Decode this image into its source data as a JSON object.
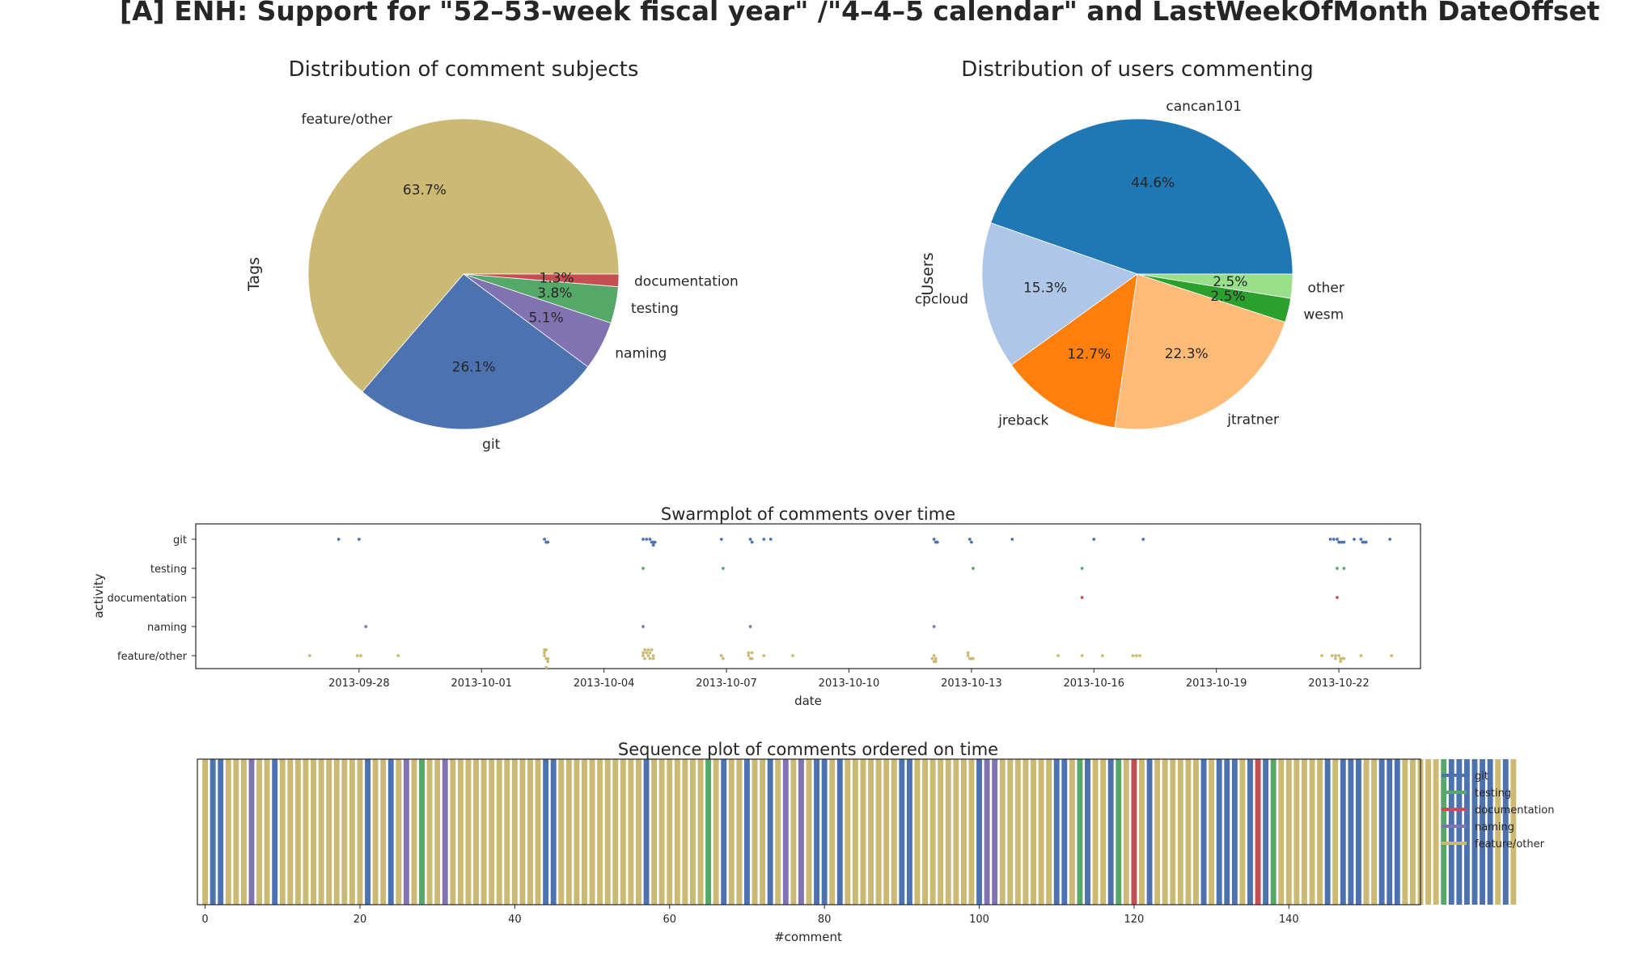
{
  "figure_title": "[A] ENH: Support for \"52–53-week fiscal year\" /\"4–4–5 calendar\" and LastWeekOfMonth DateOffset",
  "colors": {
    "git": "#4c72b0",
    "testing": "#55a868",
    "documentation": "#c44e52",
    "naming": "#8172b2",
    "feature/other": "#ccb974",
    "users": [
      "#1f77b4",
      "#aec7e8",
      "#ff7f0e",
      "#ffbb78",
      "#2ca02c",
      "#98df8a"
    ]
  },
  "chart_data": [
    {
      "type": "pie",
      "title": "Distribution of comment subjects",
      "ylabel": "Tags",
      "slices": [
        {
          "label": "feature/other",
          "pct_label": "63.7%",
          "value": 63.7,
          "color": "#ccb974"
        },
        {
          "label": "git",
          "pct_label": "26.1%",
          "value": 26.1,
          "color": "#4c72b0"
        },
        {
          "label": "naming",
          "pct_label": "5.1%",
          "value": 5.1,
          "color": "#8172b2"
        },
        {
          "label": "testing",
          "pct_label": "3.8%",
          "value": 3.8,
          "color": "#55a868"
        },
        {
          "label": "documentation",
          "pct_label": "1.3%",
          "value": 1.3,
          "color": "#c44e52"
        }
      ]
    },
    {
      "type": "pie",
      "title": "Distribution of users commenting",
      "ylabel": "Users",
      "slices": [
        {
          "label": "cancan101",
          "pct_label": "44.6%",
          "value": 44.6,
          "color": "#1f77b4"
        },
        {
          "label": "cpcloud",
          "pct_label": "15.3%",
          "value": 15.3,
          "color": "#aec7e8"
        },
        {
          "label": "jreback",
          "pct_label": "12.7%",
          "value": 12.7,
          "color": "#ff7f0e"
        },
        {
          "label": "jtratner",
          "pct_label": "22.3%",
          "value": 22.3,
          "color": "#ffbb78"
        },
        {
          "label": "wesm",
          "pct_label": "2.5%",
          "value": 2.5,
          "color": "#2ca02c"
        },
        {
          "label": "other",
          "pct_label": "2.5%",
          "value": 2.5,
          "color": "#98df8a"
        }
      ]
    },
    {
      "type": "scatter",
      "title": "Swarmplot of comments over time",
      "xlabel": "date",
      "ylabel": "activity",
      "categories": [
        "git",
        "testing",
        "documentation",
        "naming",
        "feature/other"
      ],
      "xticks": [
        "2013-09-28",
        "2013-10-01",
        "2013-10-04",
        "2013-10-07",
        "2013-10-10",
        "2013-10-13",
        "2013-10-16",
        "2013-10-19",
        "2013-10-22"
      ],
      "xlim": [
        "2013-09-24",
        "2013-10-24"
      ],
      "series": [
        {
          "name": "git",
          "x": [
            "2013-09-27 12:00",
            "2013-09-28 00:00",
            "2013-10-02 13:00",
            "2013-10-02 14:00",
            "2013-10-02 15:00",
            "2013-10-04 23:00",
            "2013-10-05 01:00",
            "2013-10-05 03:00",
            "2013-10-05 04:00",
            "2013-10-05 05:00",
            "2013-10-05 06:00",
            "2013-10-05 05:00",
            "2013-10-06 21:00",
            "2013-10-07 14:00",
            "2013-10-07 15:00",
            "2013-10-07 22:00",
            "2013-10-08 02:00",
            "2013-10-12 02:00",
            "2013-10-12 03:00",
            "2013-10-12 04:00",
            "2013-10-12 23:00",
            "2013-10-13 00:00",
            "2013-10-14 00:00",
            "2013-10-16 00:00",
            "2013-10-17 05:00",
            "2013-10-21 19:00",
            "2013-10-21 21:00",
            "2013-10-21 23:00",
            "2013-10-22 00:00",
            "2013-10-22 01:00",
            "2013-10-22 02:00",
            "2013-10-22 03:00",
            "2013-10-22 09:00",
            "2013-10-22 13:00",
            "2013-10-22 14:00",
            "2013-10-22 15:00",
            "2013-10-22 16:00",
            "2013-10-23 06:00"
          ]
        },
        {
          "name": "testing",
          "x": [
            "2013-10-04 23:00",
            "2013-10-06 22:00",
            "2013-10-13 01:00",
            "2013-10-15 17:00",
            "2013-10-21 23:00",
            "2013-10-22 03:00"
          ]
        },
        {
          "name": "documentation",
          "x": [
            "2013-10-15 17:00",
            "2013-10-21 23:00"
          ]
        },
        {
          "name": "naming",
          "x": [
            "2013-09-28 04:00",
            "2013-10-04 23:00",
            "2013-10-07 14:00",
            "2013-10-12 02:00"
          ]
        },
        {
          "name": "feature/other",
          "x": [
            "2013-09-26 19:00",
            "2013-09-27 23:00",
            "2013-09-28 01:00",
            "2013-09-28 23:00",
            "2013-10-02 13:00",
            "2013-10-02 14:00",
            "2013-10-02 15:00",
            "2013-10-02 13:00",
            "2013-10-02 14:00",
            "2013-10-02 15:00",
            "2013-10-02 13:00",
            "2013-10-02 14:00",
            "2013-10-04 23:00",
            "2013-10-05 00:00",
            "2013-10-05 02:00",
            "2013-10-05 03:00",
            "2013-10-05 05:00",
            "2013-10-04 23:00",
            "2013-10-05 01:00",
            "2013-10-05 03:00",
            "2013-10-05 05:00",
            "2013-10-05 00:00",
            "2013-10-05 02:00",
            "2013-10-05 04:00",
            "2013-10-06 21:00",
            "2013-10-06 22:00",
            "2013-10-07 13:00",
            "2013-10-07 14:00",
            "2013-10-07 15:00",
            "2013-10-07 13:00",
            "2013-10-07 15:00",
            "2013-10-07 22:00",
            "2013-10-08 15:00",
            "2013-10-12 02:00",
            "2013-10-12 03:00",
            "2013-10-12 01:00",
            "2013-10-12 02:00",
            "2013-10-12 03:00",
            "2013-10-12 22:00",
            "2013-10-12 23:00",
            "2013-10-13 00:00",
            "2013-10-13 01:00",
            "2013-10-12 22:00",
            "2013-10-15 03:00",
            "2013-10-15 17:00",
            "2013-10-16 05:00",
            "2013-10-16 23:00",
            "2013-10-17 01:00",
            "2013-10-17 03:00",
            "2013-10-21 14:00",
            "2013-10-21 20:00",
            "2013-10-21 22:00",
            "2013-10-22 00:00",
            "2013-10-22 01:00",
            "2013-10-22 02:00",
            "2013-10-22 03:00",
            "2013-10-21 22:00",
            "2013-10-22 01:00",
            "2013-10-22 13:00",
            "2013-10-23 07:00"
          ]
        }
      ]
    },
    {
      "type": "bar",
      "title": "Sequence plot of comments ordered on time",
      "xlabel": "#comment",
      "xticks": [
        "0",
        "20",
        "40",
        "60",
        "80",
        "100",
        "120",
        "140"
      ],
      "xlim": [
        -1,
        157
      ],
      "legend": [
        "git",
        "testing",
        "documentation",
        "naming",
        "feature/other"
      ],
      "legend_placement": "right",
      "sequence_codes": {
        "G": "git",
        "T": "testing",
        "D": "documentation",
        "N": "naming",
        "F": "feature/other"
      },
      "sequence": "FGGFFFNFFGFFFFFFFFFFFGFFGFNFTFFNFFFFFFFFFFFFGGFFFFFFFFFFFGFFFFFFFTFGFFGFFGFNFNFGGFGFFFFFFFGGFFFFFFFFGNNFFFFFFFGGFTGFFGTFDFGFFFFFFGFGGGFGDGTFFFFFFGFGGGFFGGGFFFFFTGGGGGGFGF"
    }
  ]
}
